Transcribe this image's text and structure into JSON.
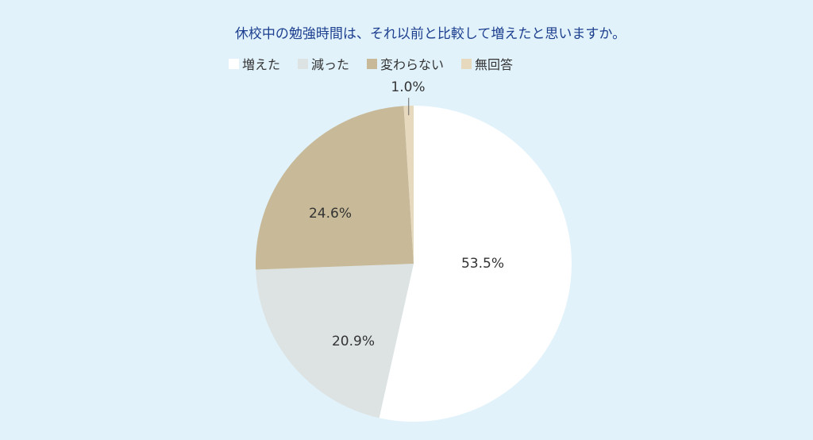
{
  "chart_data": {
    "type": "pie",
    "title": "休校中の勉強時間は、それ以前と比較して増えたと思いますか。",
    "legend_position": "top",
    "slices": [
      {
        "name": "増えた",
        "value": 53.5,
        "label": "53.5%",
        "color": "#ffffff"
      },
      {
        "name": "減った",
        "value": 20.9,
        "label": "20.9%",
        "color": "#dde3e3"
      },
      {
        "name": "変わらない",
        "value": 24.6,
        "label": "24.6%",
        "color": "#c8ba98"
      },
      {
        "name": "無回答",
        "value": 1.0,
        "label": "1.0%",
        "color": "#e6d9bd"
      }
    ]
  }
}
